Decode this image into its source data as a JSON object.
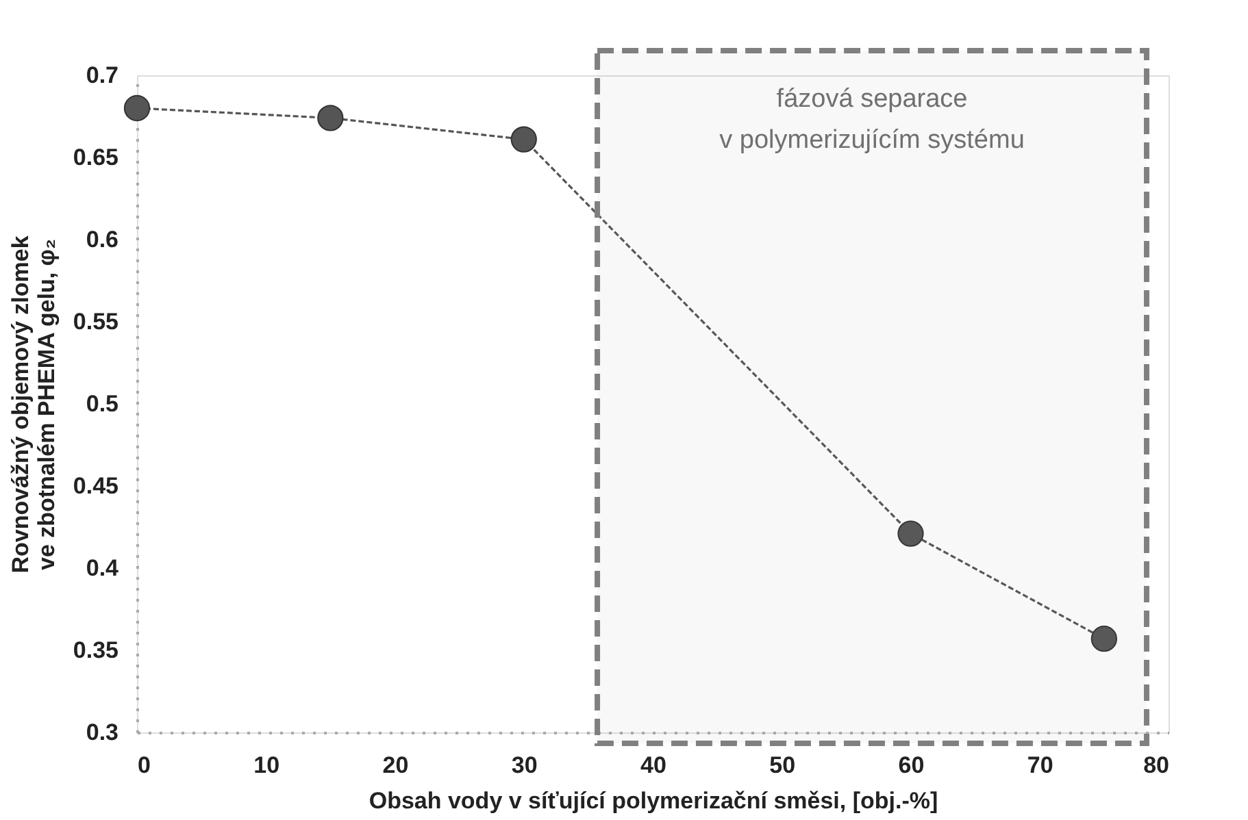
{
  "chart_data": {
    "type": "line",
    "xlabel": "Obsah vody v síťující polymerizační směsi, [obj.-%]",
    "ylabel": "Rovnovážný objemový zlomek\nve zbotnalém PHEMA gelu, φ₂",
    "x": [
      0,
      15,
      30,
      60,
      75
    ],
    "series": [
      {
        "color": "#555555",
        "values": [
          0.68,
          0.674,
          0.661,
          0.421,
          0.357
        ]
      }
    ],
    "xlim": [
      0,
      80
    ],
    "xticks": [
      0,
      10,
      20,
      30,
      40,
      50,
      60,
      70,
      80
    ],
    "ylim": [
      0.3,
      0.7
    ],
    "yticks": [
      0.3,
      0.35,
      0.4,
      0.45,
      0.5,
      0.55,
      0.6,
      0.65,
      0.7
    ],
    "bands": [
      {
        "axis": "x",
        "from": 35.7,
        "to": 78.3,
        "label": "fázová separace\nv polymerizujícím systému",
        "color": "#808080"
      }
    ],
    "marker": "circle",
    "line_style": "dashed",
    "grid": false
  }
}
